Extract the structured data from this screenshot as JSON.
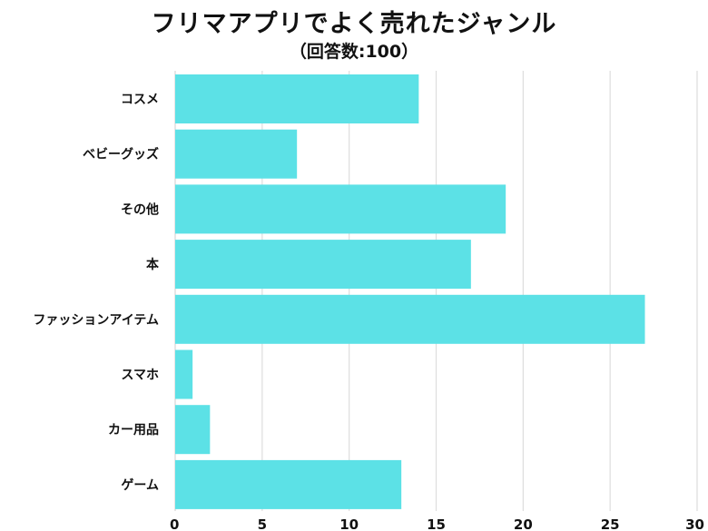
{
  "chart_data": {
    "type": "bar",
    "orientation": "horizontal",
    "title": "フリマアプリでよく売れたジャンル",
    "subtitle": "（回答数:100）",
    "categories": [
      "コスメ",
      "ベビーグッズ",
      "その他",
      "本",
      "ファッションアイテム",
      "スマホ",
      "カー用品",
      "ゲーム"
    ],
    "values": [
      14,
      7,
      19,
      17,
      27,
      1,
      2,
      13
    ],
    "xlim": [
      0,
      30
    ],
    "xticks": [
      "0",
      "5",
      "10",
      "15",
      "20",
      "25",
      "30"
    ],
    "grid": true,
    "bar_color": "#5ce1e6",
    "grid_color": "#dddddd"
  }
}
